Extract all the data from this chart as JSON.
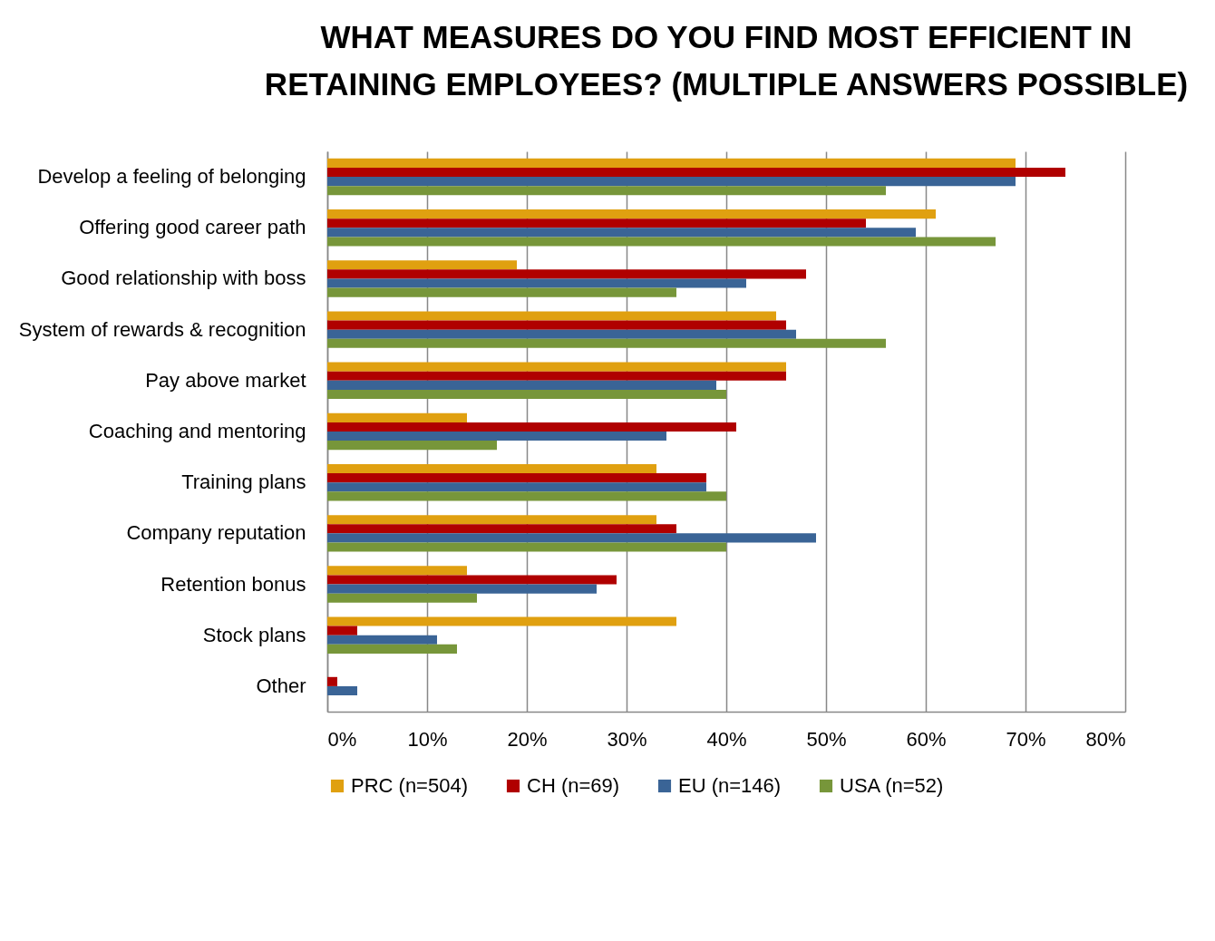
{
  "chart_data": {
    "type": "bar",
    "orientation": "horizontal",
    "title": "WHAT MEASURES DO YOU FIND MOST EFFICIENT IN RETAINING EMPLOYEES? (MULTIPLE ANSWERS POSSIBLE)",
    "categories": [
      "Develop a feeling of belonging",
      "Offering good career path",
      "Good relationship with boss",
      "System of rewards & recognition",
      "Pay above market",
      "Coaching and mentoring",
      "Training plans",
      "Company reputation",
      "Retention bonus",
      "Stock plans",
      "Other"
    ],
    "series": [
      {
        "name": "PRC (n=504)",
        "color": "#e0a010",
        "values": [
          69,
          61,
          19,
          45,
          46,
          14,
          33,
          33,
          14,
          35,
          0
        ]
      },
      {
        "name": "CH (n=69)",
        "color": "#b00000",
        "values": [
          74,
          54,
          48,
          46,
          46,
          41,
          38,
          35,
          29,
          3,
          1
        ]
      },
      {
        "name": "EU (n=146)",
        "color": "#3a6496",
        "values": [
          69,
          59,
          42,
          47,
          39,
          34,
          38,
          49,
          27,
          11,
          3
        ]
      },
      {
        "name": "USA (n=52)",
        "color": "#77963a",
        "values": [
          56,
          67,
          35,
          56,
          40,
          17,
          40,
          40,
          15,
          13,
          0
        ]
      }
    ],
    "xlim": [
      0,
      80
    ],
    "xticks": [
      {
        "value": 0,
        "label": "0%"
      },
      {
        "value": 10,
        "label": "10%"
      },
      {
        "value": 20,
        "label": "20%"
      },
      {
        "value": 30,
        "label": "30%"
      },
      {
        "value": 40,
        "label": "40%"
      },
      {
        "value": 50,
        "label": "50%"
      },
      {
        "value": 60,
        "label": "60%"
      },
      {
        "value": 70,
        "label": "70%"
      },
      {
        "value": 80,
        "label": "80%"
      }
    ],
    "grid": "x",
    "legend": "bottom"
  }
}
